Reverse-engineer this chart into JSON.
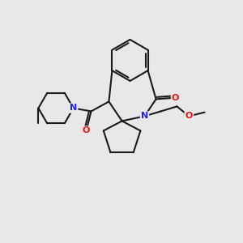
{
  "bg_color": "#e8e8e8",
  "bond_color": "#1a1a1a",
  "N_color": "#2222ee",
  "O_color": "#ee1111",
  "bond_lw": 1.5,
  "font_size": 8.0,
  "xlim": [
    0,
    10
  ],
  "ylim": [
    0,
    10
  ]
}
